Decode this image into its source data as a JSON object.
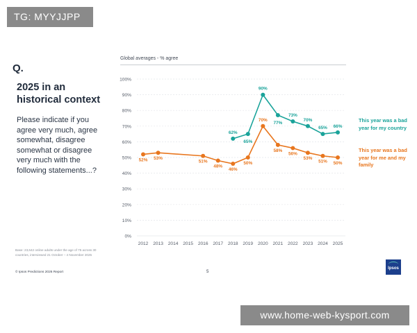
{
  "watermark_tag": "TG: MYYJJPP",
  "slide": {
    "q_label": "Q.",
    "title": "2025 in an historical context",
    "question": "Please indicate if you agree very much, agree somewhat, disagree somewhat or disagree very much with the following statements...?",
    "base_note": "Base: 23,642 online adults under the age of 75 across 30 countries, interviewed 21 October – 4 November 2025",
    "copyright": "© Ipsos Predictions 2026 Report",
    "page_number": "5",
    "logo_text": "Ipsos"
  },
  "chart_data": {
    "type": "line",
    "subtitle": "Global averages - % agree",
    "x": [
      "2012",
      "2013",
      "2014",
      "2015",
      "2016",
      "2017",
      "2018",
      "2019",
      "2020",
      "2021",
      "2022",
      "2023",
      "2024",
      "2025"
    ],
    "ylim": [
      0,
      100
    ],
    "yticks": [
      "0%",
      "10%",
      "20%",
      "30%",
      "40%",
      "50%",
      "60%",
      "70%",
      "80%",
      "90%",
      "100%"
    ],
    "series": [
      {
        "name": "This year was a bad year for my country",
        "color": "#1aa39a",
        "values": [
          null,
          null,
          null,
          null,
          null,
          null,
          62,
          65,
          90,
          77,
          73,
          70,
          65,
          66
        ],
        "labels": [
          null,
          null,
          null,
          null,
          null,
          null,
          "62%",
          "65%",
          "90%",
          "77%",
          "73%",
          "70%",
          "65%",
          "66%"
        ]
      },
      {
        "name": "This year was a bad year for me and my family",
        "color": "#e8761e",
        "values": [
          52,
          53,
          null,
          null,
          51,
          48,
          46,
          50,
          70,
          58,
          56,
          53,
          51,
          50
        ],
        "labels": [
          "52%",
          "53%",
          null,
          null,
          "51%",
          "48%",
          "46%",
          "50%",
          "70%",
          "58%",
          "56%",
          "53%",
          "51%",
          "50%"
        ]
      }
    ],
    "legend_position": "right"
  },
  "footer_url": "www.home-web-kysport.com"
}
